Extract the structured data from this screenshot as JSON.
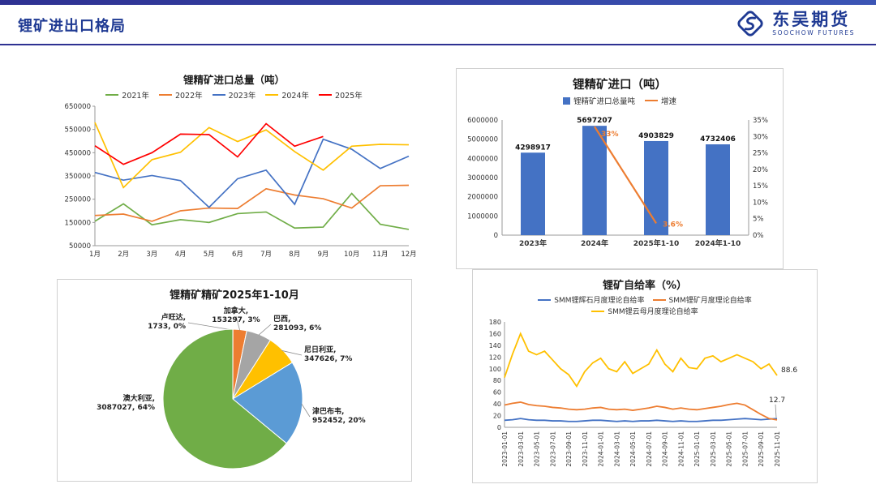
{
  "header": {
    "title": "锂矿进出口格局",
    "brand": "东吴期货",
    "brand_sub": "SOOCHOW FUTURES",
    "accent_color": "#1F3A93"
  },
  "chart_data": [
    {
      "id": "monthly-imports",
      "type": "line",
      "title": "锂精矿进口总量（吨）",
      "xlabel": "",
      "ylabel": "",
      "ylim": [
        50000,
        650000
      ],
      "ytick_step": 100000,
      "grid": false,
      "legend_position": "top",
      "categories": [
        "1月",
        "2月",
        "3月",
        "4月",
        "5月",
        "6月",
        "7月",
        "8月",
        "9月",
        "10月",
        "11月",
        "12月"
      ],
      "series": [
        {
          "name": "2021年",
          "color": "#70AD47",
          "values": [
            155000,
            230000,
            140000,
            162000,
            150000,
            188000,
            195000,
            126000,
            130000,
            275000,
            142000,
            120000
          ]
        },
        {
          "name": "2022年",
          "color": "#ED7D31",
          "values": [
            180000,
            186000,
            155000,
            200000,
            212000,
            210000,
            295000,
            268000,
            252000,
            212000,
            308000,
            310000
          ]
        },
        {
          "name": "2023年",
          "color": "#4472C4",
          "values": [
            365000,
            332000,
            352000,
            330000,
            215000,
            338000,
            375000,
            228000,
            508000,
            465000,
            382000,
            435000
          ]
        },
        {
          "name": "2024年",
          "color": "#FFC000",
          "values": [
            580000,
            300000,
            420000,
            452000,
            558000,
            498000,
            548000,
            455000,
            375000,
            478000,
            486000,
            484000
          ]
        },
        {
          "name": "2025年",
          "color": "#FF0000",
          "values": [
            480000,
            400000,
            450000,
            530000,
            528000,
            432000,
            575000,
            478000,
            520000,
            null,
            null,
            null
          ]
        }
      ]
    },
    {
      "id": "yearly-imports",
      "type": "bar",
      "title": "锂精矿进口（吨）",
      "ylim": [
        0,
        6000000
      ],
      "ytick_step": 1000000,
      "y2lim": [
        0,
        35
      ],
      "y2tick_step": 5,
      "y2suffix": "%",
      "legend_position": "top",
      "categories": [
        "2023年",
        "2024年",
        "2025年1-10",
        "2024年1-10"
      ],
      "bars": {
        "name": "锂精矿进口总量吨",
        "color": "#4472C4",
        "values": [
          4298917,
          5697207,
          4903829,
          4732406
        ]
      },
      "line": {
        "name": "增速",
        "color": "#ED7D31",
        "values": [
          null,
          33,
          3.6,
          null
        ],
        "labels": [
          null,
          "33%",
          "3.6%",
          null
        ]
      }
    },
    {
      "id": "import-origin-share",
      "type": "pie",
      "title": "锂精矿精矿2025年1-10月",
      "slices": [
        {
          "name": "卢旺达",
          "value": 1733,
          "pct": "0%",
          "color": "#264478"
        },
        {
          "name": "加拿大",
          "value": 153297,
          "pct": "3%",
          "color": "#ED7D31"
        },
        {
          "name": "巴西",
          "value": 281093,
          "pct": "6%",
          "color": "#A5A5A5"
        },
        {
          "name": "尼日利亚",
          "value": 347626,
          "pct": "7%",
          "color": "#FFC000"
        },
        {
          "name": "津巴布韦",
          "value": 952452,
          "pct": "20%",
          "color": "#5B9BD5"
        },
        {
          "name": "澳大利亚",
          "value": 3087027,
          "pct": "64%",
          "color": "#70AD47"
        }
      ]
    },
    {
      "id": "self-sufficiency",
      "type": "line",
      "title": "锂矿自给率（%）",
      "ylim": [
        0,
        180
      ],
      "ytick_step": 20,
      "grid": false,
      "legend_position": "top",
      "x_tick_labels": [
        "2023-01-01",
        "2023-03-01",
        "2023-05-01",
        "2023-07-01",
        "2023-09-01",
        "2023-11-01",
        "2024-01-01",
        "2024-03-01",
        "2024-05-01",
        "2024-07-01",
        "2024-09-01",
        "2024-11-01",
        "2025-01-01",
        "2025-03-01",
        "2025-05-01",
        "2025-07-01",
        "2025-09-01",
        "2025-11-01"
      ],
      "x_tick_every": 2,
      "series": [
        {
          "name": "SMM锂辉石月度理论自给率",
          "color": "#4472C4",
          "values": [
            12,
            13,
            15,
            13,
            12,
            12,
            11,
            11,
            10,
            10,
            11,
            12,
            12,
            11,
            10,
            11,
            10,
            11,
            11,
            12,
            11,
            10,
            11,
            10,
            10,
            11,
            12,
            12,
            13,
            14,
            15,
            14,
            13,
            14,
            15
          ]
        },
        {
          "name": "SMM锂矿月度理论自给率",
          "color": "#ED7D31",
          "values": [
            38,
            41,
            43,
            39,
            37,
            36,
            34,
            33,
            31,
            30,
            31,
            33,
            34,
            31,
            30,
            31,
            29,
            31,
            33,
            36,
            34,
            31,
            33,
            31,
            30,
            32,
            34,
            36,
            39,
            41,
            38,
            30,
            22,
            15,
            12.7
          ]
        },
        {
          "name": "SMM锂云母月度理论自给率",
          "color": "#FFC000",
          "values": [
            85,
            125,
            160,
            130,
            124,
            130,
            115,
            100,
            90,
            70,
            95,
            110,
            118,
            100,
            95,
            112,
            92,
            100,
            108,
            132,
            108,
            95,
            118,
            102,
            100,
            118,
            122,
            112,
            118,
            124,
            118,
            112,
            100,
            108,
            88.6
          ]
        }
      ],
      "annotations": [
        {
          "text": "88.6",
          "series": 2,
          "point": 34
        },
        {
          "text": "12.7",
          "series": 1,
          "point": 34
        }
      ]
    }
  ]
}
